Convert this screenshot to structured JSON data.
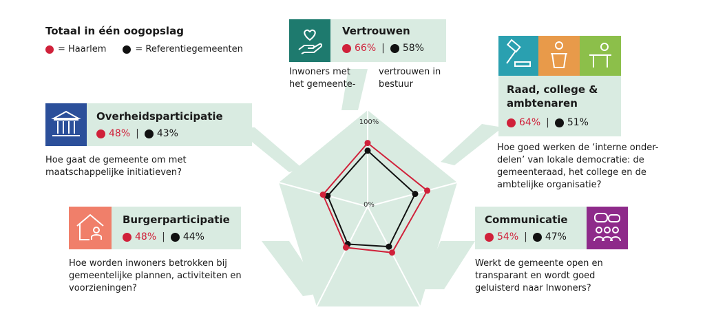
{
  "header": {
    "title": "Totaal in één oogopslag",
    "legend_haarlem": "= Haarlem",
    "legend_reference": "= Referentiegemeenten"
  },
  "colors": {
    "haarlem": "#d0213a",
    "reference": "#111111",
    "card_bg": "#d9ebe1",
    "pentagon": "#d9ebe1"
  },
  "cards": {
    "vertrouwen": {
      "title": "Vertrouwen",
      "haarlem": "66%",
      "sep": "|",
      "reference": "58%",
      "desc_left": "Inwoners met het gemeente-",
      "desc_right": "vertrouwen in bestuur",
      "icon": "heart-hand-icon",
      "icon_color": "#1e7a6e"
    },
    "raad": {
      "title": "Raad, college & ambtenaren",
      "haarlem": "64%",
      "sep": "|",
      "reference": "51%",
      "desc": "Hoe goed werken de ‘interne onder-delen’ van lokale democratie: de gemeenteraad, het college en de ambtelijke organisatie?",
      "icons": [
        "gavel-icon",
        "lectern-icon",
        "official-desk-icon"
      ],
      "icon_colors": [
        "#2aa0b0",
        "#e89a4a",
        "#8cbf4a"
      ]
    },
    "overheid": {
      "title": "Overheidsparticipatie",
      "haarlem": "48%",
      "sep": "|",
      "reference": "43%",
      "desc": "Hoe gaat de gemeente om met maatschappelijke initiatieven?",
      "icon": "government-building-icon",
      "icon_color": "#2b4f9a"
    },
    "burger": {
      "title": "Burgerparticipatie",
      "haarlem": "48%",
      "sep": "|",
      "reference": "44%",
      "desc": "Hoe worden inwoners betrokken bij gemeentelijke plannen, activiteiten en voorzieningen?",
      "icon": "house-person-icon",
      "icon_color": "#f07f6a"
    },
    "communicatie": {
      "title": "Communicatie",
      "haarlem": "54%",
      "sep": "|",
      "reference": "47%",
      "desc": "Werkt de gemeente open en transparant en wordt goed geluisterd naar Inwoners?",
      "icon": "people-chat-icon",
      "icon_color": "#8e2a8a"
    }
  },
  "chart_data": {
    "type": "radar",
    "axes": [
      "Vertrouwen",
      "Raad, college & ambtenaren",
      "Communicatie",
      "Burgerparticipatie",
      "Overheidsparticipatie"
    ],
    "series": [
      {
        "name": "Haarlem",
        "values": [
          66,
          64,
          54,
          48,
          48
        ]
      },
      {
        "name": "Referentiegemeenten",
        "values": [
          58,
          51,
          47,
          44,
          43
        ]
      }
    ],
    "range": [
      0,
      100
    ],
    "tick_labels": [
      "100%",
      "0%"
    ]
  }
}
